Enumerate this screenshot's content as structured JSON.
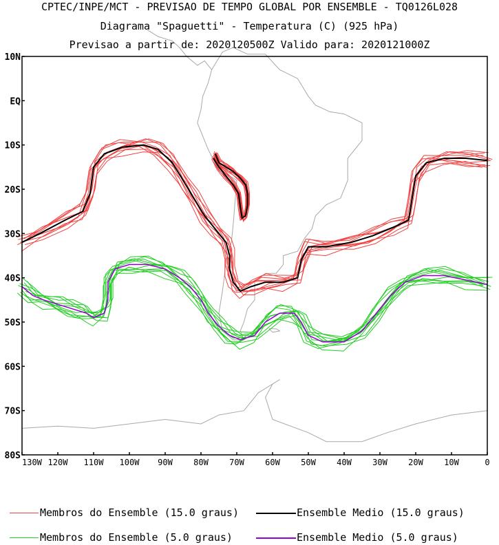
{
  "header": {
    "line1": "CPTEC/INPE/MCT - PREVISAO DE TEMPO GLOBAL POR ENSEMBLE - TQ0126L028",
    "line2": "Diagrama \"Spaguetti\" - Temperatura (C) (925 hPa)",
    "line3": "Previsao a partir de: 2020120500Z  Valido para: 2020121000Z"
  },
  "axes": {
    "lat_labels": [
      "10N",
      "EQ",
      "10S",
      "20S",
      "30S",
      "40S",
      "50S",
      "60S",
      "70S",
      "80S"
    ],
    "lat_values": [
      10,
      0,
      -10,
      -20,
      -30,
      -40,
      -50,
      -60,
      -70,
      -80
    ],
    "lon_labels": [
      "130W",
      "120W",
      "110W",
      "100W",
      "90W",
      "80W",
      "70W",
      "60W",
      "50W",
      "40W",
      "30W",
      "20W",
      "10W",
      "0"
    ],
    "lon_values": [
      -130,
      -120,
      -110,
      -100,
      -90,
      -80,
      -70,
      -60,
      -50,
      -40,
      -30,
      -20,
      -10,
      0
    ],
    "lon_range": [
      -130,
      0
    ],
    "lat_range": [
      -80,
      10
    ]
  },
  "legend": {
    "items": [
      {
        "label": "Membros do Ensemble (15.0 graus)",
        "color": "#f04040"
      },
      {
        "label": "Ensemble Medio (15.0 graus)",
        "color": "#000000"
      },
      {
        "label": "Membros do Ensemble (5.0 graus)",
        "color": "#20cc20"
      },
      {
        "label": "Ensemble Medio (5.0 graus)",
        "color": "#9400d3"
      }
    ]
  },
  "colors": {
    "coastline": "#a8a8a8",
    "members_15": "#f04040",
    "mean_15": "#000000",
    "members_5": "#20cc20",
    "mean_5": "#9400d3"
  },
  "contours": {
    "mean_15": [
      [
        -130,
        -32
      ],
      [
        -125,
        -30
      ],
      [
        -118,
        -27
      ],
      [
        -113,
        -25
      ],
      [
        -111,
        -21
      ],
      [
        -110,
        -15
      ],
      [
        -107,
        -12
      ],
      [
        -102,
        -10.5
      ],
      [
        -96,
        -10
      ],
      [
        -92,
        -11
      ],
      [
        -88,
        -14
      ],
      [
        -85,
        -18
      ],
      [
        -82,
        -22
      ],
      [
        -79,
        -26
      ],
      [
        -76,
        -29
      ],
      [
        -73,
        -32
      ],
      [
        -72,
        -35
      ],
      [
        -72,
        -38
      ],
      [
        -71,
        -41
      ],
      [
        -69,
        -43
      ],
      [
        -66,
        -42
      ],
      [
        -62,
        -41
      ],
      [
        -57,
        -41
      ],
      [
        -53,
        -40
      ],
      [
        -52,
        -36
      ],
      [
        -50,
        -33
      ],
      [
        -45,
        -33
      ],
      [
        -38,
        -32
      ],
      [
        -32,
        -30.5
      ],
      [
        -26,
        -28.5
      ],
      [
        -22,
        -27
      ],
      [
        -21,
        -22
      ],
      [
        -20,
        -17
      ],
      [
        -17,
        -14
      ],
      [
        -12,
        -13
      ],
      [
        -6,
        -13
      ],
      [
        0,
        -13.5
      ]
    ],
    "mean_15_andes": [
      [
        -76,
        -12
      ],
      [
        -75,
        -14
      ],
      [
        -73,
        -15
      ],
      [
        -71,
        -16
      ],
      [
        -69,
        -17.5
      ],
      [
        -67.5,
        -19
      ],
      [
        -67,
        -21
      ],
      [
        -67,
        -23.5
      ],
      [
        -67.5,
        -26
      ],
      [
        -68.5,
        -26.5
      ],
      [
        -69,
        -24
      ],
      [
        -69.5,
        -21
      ],
      [
        -71,
        -19
      ],
      [
        -73,
        -17
      ],
      [
        -75,
        -15
      ],
      [
        -76.5,
        -13
      ]
    ],
    "mean_5": [
      [
        -130,
        -42
      ],
      [
        -127,
        -44
      ],
      [
        -124,
        -45
      ],
      [
        -120,
        -46
      ],
      [
        -116,
        -47
      ],
      [
        -112,
        -48
      ],
      [
        -110,
        -49
      ],
      [
        -107,
        -48
      ],
      [
        -106,
        -45
      ],
      [
        -106,
        -41
      ],
      [
        -104,
        -38
      ],
      [
        -100,
        -37
      ],
      [
        -95,
        -37
      ],
      [
        -90,
        -38
      ],
      [
        -86,
        -40
      ],
      [
        -83,
        -42
      ],
      [
        -80,
        -45
      ],
      [
        -78,
        -48
      ],
      [
        -75,
        -51
      ],
      [
        -72,
        -53
      ],
      [
        -69,
        -54
      ],
      [
        -65,
        -53
      ],
      [
        -62,
        -50
      ],
      [
        -58,
        -48
      ],
      [
        -54,
        -48
      ],
      [
        -52,
        -50
      ],
      [
        -50,
        -53
      ],
      [
        -46,
        -54.5
      ],
      [
        -40,
        -54.5
      ],
      [
        -35,
        -52
      ],
      [
        -31,
        -48
      ],
      [
        -27,
        -44
      ],
      [
        -23,
        -41
      ],
      [
        -18,
        -39.5
      ],
      [
        -12,
        -39.5
      ],
      [
        -6,
        -40.5
      ],
      [
        0,
        -41.5
      ]
    ]
  },
  "coastline": {
    "south_america": [
      [
        -77,
        7
      ],
      [
        -74,
        11
      ],
      [
        -71,
        12
      ],
      [
        -67,
        10.5
      ],
      [
        -62,
        10.5
      ],
      [
        -58,
        7
      ],
      [
        -53,
        5
      ],
      [
        -50,
        1
      ],
      [
        -48,
        -1
      ],
      [
        -44,
        -2.5
      ],
      [
        -40,
        -3
      ],
      [
        -35,
        -5
      ],
      [
        -35,
        -9
      ],
      [
        -39,
        -13
      ],
      [
        -39,
        -18
      ],
      [
        -41,
        -22
      ],
      [
        -45,
        -23.5
      ],
      [
        -48,
        -26
      ],
      [
        -49,
        -29
      ],
      [
        -51,
        -31
      ],
      [
        -53,
        -34
      ],
      [
        -57,
        -35
      ],
      [
        -57,
        -37
      ],
      [
        -59,
        -39
      ],
      [
        -62,
        -39
      ],
      [
        -65,
        -41
      ],
      [
        -65,
        -45
      ],
      [
        -67,
        -47
      ],
      [
        -68,
        -50
      ],
      [
        -69,
        -52
      ],
      [
        -68,
        -54
      ],
      [
        -71,
        -54
      ],
      [
        -74,
        -52
      ],
      [
        -75,
        -48
      ],
      [
        -74,
        -43
      ],
      [
        -73.5,
        -40
      ],
      [
        -73,
        -36
      ],
      [
        -71.5,
        -32
      ],
      [
        -71,
        -28
      ],
      [
        -70.5,
        -23
      ],
      [
        -70,
        -18
      ],
      [
        -72,
        -17
      ],
      [
        -75.5,
        -15
      ],
      [
        -78,
        -11
      ],
      [
        -80,
        -7
      ],
      [
        -81,
        -5
      ],
      [
        -80,
        -2
      ],
      [
        -79.5,
        1
      ],
      [
        -78,
        4
      ],
      [
        -77,
        7
      ]
    ],
    "central_america": [
      [
        -77,
        7
      ],
      [
        -79,
        9
      ],
      [
        -81,
        8
      ],
      [
        -84,
        10
      ],
      [
        -86,
        12
      ],
      [
        -88,
        13.5
      ],
      [
        -90,
        14
      ],
      [
        -92,
        14.5
      ],
      [
        -95,
        16
      ]
    ],
    "antarctica": [
      [
        -130,
        -74
      ],
      [
        -120,
        -73.5
      ],
      [
        -110,
        -74
      ],
      [
        -100,
        -73
      ],
      [
        -90,
        -72
      ],
      [
        -80,
        -73
      ],
      [
        -75,
        -71
      ],
      [
        -68,
        -70
      ],
      [
        -64,
        -66
      ],
      [
        -58,
        -63
      ],
      [
        -60,
        -64
      ],
      [
        -62,
        -67
      ],
      [
        -60,
        -72
      ],
      [
        -50,
        -75
      ],
      [
        -45,
        -77
      ],
      [
        -35,
        -77
      ],
      [
        -28,
        -75
      ],
      [
        -20,
        -73
      ],
      [
        -15,
        -72
      ],
      [
        -10,
        -71
      ],
      [
        0,
        -70
      ]
    ],
    "falklands": [
      [
        -61,
        -51.5
      ],
      [
        -59,
        -51.5
      ],
      [
        -58,
        -52
      ],
      [
        -60,
        -52.3
      ],
      [
        -61,
        -51.5
      ]
    ]
  }
}
